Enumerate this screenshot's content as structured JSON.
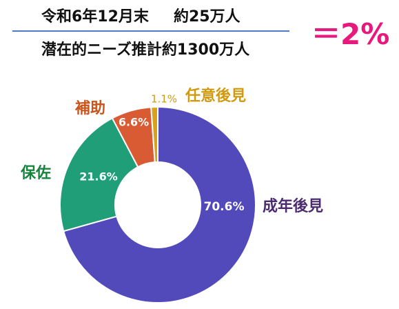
{
  "header": {
    "line1_left": "令和6年12月末",
    "line1_right": "約25万人",
    "line2": "潜在的ニーズ推計約1300万人",
    "ratio": "＝2%"
  },
  "chart_data": {
    "type": "pie",
    "donut": true,
    "categories": [
      "成年後見",
      "保佐",
      "補助",
      "任意後見"
    ],
    "values": [
      70.6,
      21.6,
      6.6,
      1.1
    ],
    "labels": [
      "70.6%",
      "21.6%",
      "6.6%",
      "1.1%"
    ],
    "colors": [
      "#524aba",
      "#1f9e78",
      "#d95b33",
      "#d9a21c"
    ],
    "category_colors": [
      "#4b2a70",
      "#14843c",
      "#c8551c",
      "#d19a0e"
    ]
  }
}
